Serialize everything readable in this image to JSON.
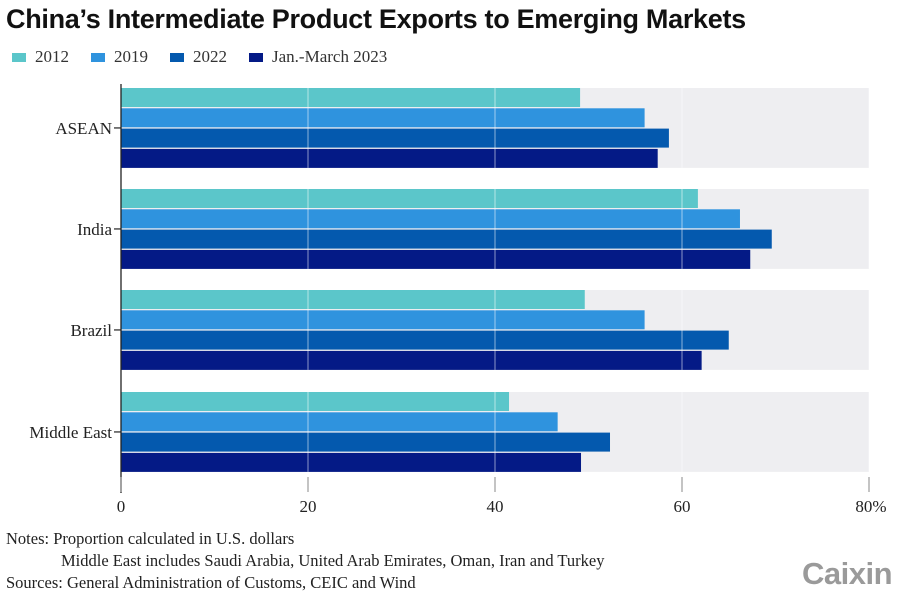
{
  "chart_data": {
    "type": "bar",
    "orientation": "horizontal",
    "title": "China’s Intermediate Product Exports to Emerging Markets",
    "xlabel": "",
    "ylabel": "",
    "xlim": [
      0,
      80
    ],
    "x_ticks": [
      0,
      20,
      40,
      60,
      80
    ],
    "x_tick_labels": [
      "0",
      "20",
      "40",
      "60",
      "80%"
    ],
    "grid": true,
    "legend_position": "top-left",
    "categories": [
      "ASEAN",
      "India",
      "Brazil",
      "Middle East"
    ],
    "series": [
      {
        "name": "2012",
        "color": "#5bc6ca",
        "values": [
          49.1,
          61.7,
          49.6,
          41.5
        ]
      },
      {
        "name": "2019",
        "color": "#2f93de",
        "values": [
          56.0,
          66.2,
          56.0,
          46.7
        ]
      },
      {
        "name": "2022",
        "color": "#0459ae",
        "values": [
          58.6,
          69.6,
          65.0,
          52.3
        ]
      },
      {
        "name": "Jan.-March 2023",
        "color": "#041a86",
        "values": [
          57.4,
          67.3,
          62.1,
          49.2
        ]
      }
    ],
    "background_band_color": "#eeeef1"
  },
  "notes": {
    "line1": "Notes: Proportion calculated in U.S. dollars",
    "line2": "Middle East includes Saudi Arabia, United Arab Emirates, Oman, Iran and Turkey",
    "line3": "Sources: General Administration of Customs, CEIC and Wind"
  },
  "brand": "Caixin"
}
